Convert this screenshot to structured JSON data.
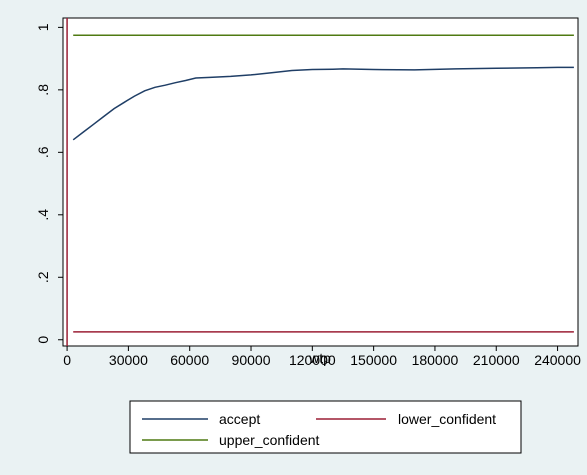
{
  "chart_data": {
    "type": "line",
    "title": "",
    "xlabel": "wtp",
    "ylabel": "",
    "xlim": [
      -2000,
      250000
    ],
    "ylim": [
      -0.02,
      1.03
    ],
    "x_ticks": [
      0,
      30000,
      60000,
      90000,
      120000,
      150000,
      180000,
      210000,
      240000
    ],
    "y_ticks": [
      0,
      0.2,
      0.4,
      0.6,
      0.8,
      1
    ],
    "y_tick_labels": [
      "0",
      ".2",
      ".4",
      ".6",
      ".8",
      "1"
    ],
    "grid": false,
    "legend_position": "bottom",
    "series": [
      {
        "name": "accept",
        "color": "#1f3e66",
        "x": [
          3000,
          8000,
          13000,
          18000,
          23000,
          28000,
          33000,
          38000,
          43000,
          48000,
          53000,
          58000,
          63000,
          70000,
          80000,
          90000,
          100000,
          110000,
          120000,
          130000,
          135000,
          150000,
          170000,
          190000,
          210000,
          230000,
          240000,
          248000
        ],
        "y": [
          0.64,
          0.665,
          0.69,
          0.715,
          0.74,
          0.76,
          0.78,
          0.797,
          0.808,
          0.815,
          0.823,
          0.83,
          0.838,
          0.84,
          0.843,
          0.848,
          0.855,
          0.862,
          0.865,
          0.866,
          0.867,
          0.865,
          0.864,
          0.867,
          0.869,
          0.871,
          0.872,
          0.872
        ]
      },
      {
        "name": "lower_confident",
        "color": "#9b1f35",
        "x": [
          3000,
          248000
        ],
        "y": [
          0.025,
          0.025
        ]
      },
      {
        "name": "upper_confident",
        "color": "#4f7a12",
        "x": [
          3000,
          248000
        ],
        "y": [
          0.975,
          0.975
        ]
      }
    ],
    "reference_line": {
      "axis": "x",
      "value": 0,
      "color": "#9b1f35"
    }
  }
}
